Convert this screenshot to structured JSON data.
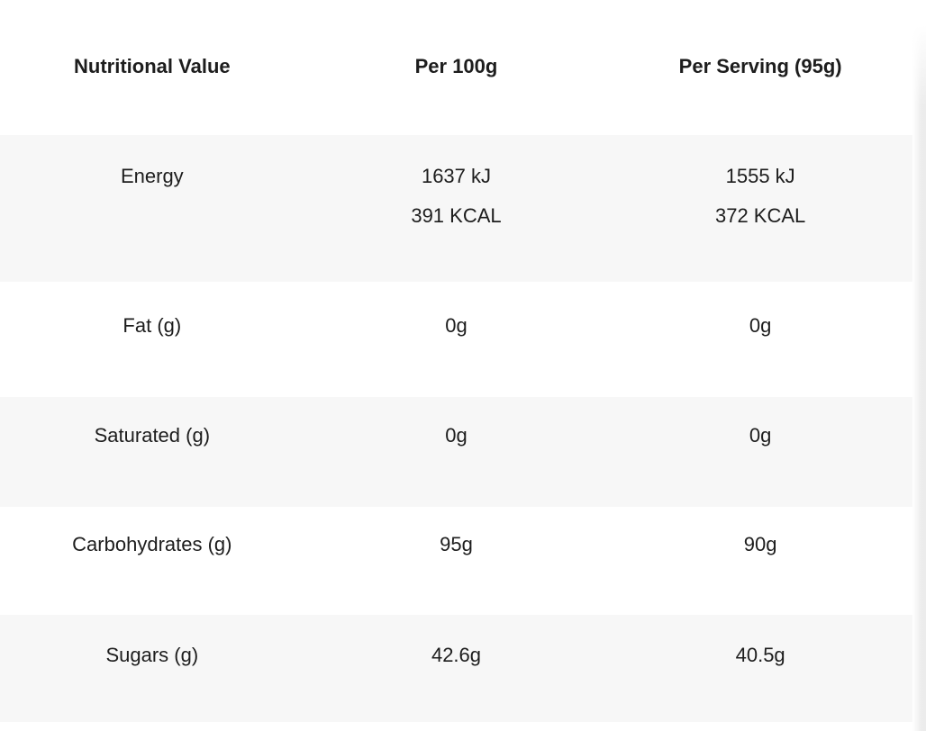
{
  "colors": {
    "background": "#ffffff",
    "row_alt_background": "#f7f7f7",
    "text": "#1d1d1d",
    "top_divider": "#f2f2f2",
    "right_edge_shade": "#ededed"
  },
  "table": {
    "headers": [
      "Nutritional Value",
      "Per 100g",
      "Per Serving (95g)"
    ],
    "rows": [
      {
        "label": "Energy",
        "per_100g_line1": "1637 kJ",
        "per_100g_line2": "391 KCAL",
        "per_serving_line1": "1555 kJ",
        "per_serving_line2": "372 KCAL"
      },
      {
        "label": "Fat (g)",
        "per_100g": "0g",
        "per_serving": "0g"
      },
      {
        "label": "Saturated (g)",
        "per_100g": "0g",
        "per_serving": "0g"
      },
      {
        "label": "Carbohydrates (g)",
        "per_100g": "95g",
        "per_serving": "90g"
      },
      {
        "label": "Sugars (g)",
        "per_100g": "42.6g",
        "per_serving": "40.5g"
      }
    ]
  },
  "chart_data": {
    "type": "table",
    "title": "Nutritional Value",
    "columns": [
      "Nutritional Value",
      "Per 100g",
      "Per Serving (95g)"
    ],
    "rows": [
      [
        "Energy",
        "1637 kJ / 391 KCAL",
        "1555 kJ / 372 KCAL"
      ],
      [
        "Fat (g)",
        "0g",
        "0g"
      ],
      [
        "Saturated (g)",
        "0g",
        "0g"
      ],
      [
        "Carbohydrates (g)",
        "95g",
        "90g"
      ],
      [
        "Sugars (g)",
        "42.6g",
        "40.5g"
      ]
    ],
    "layout_hints": {
      "zebra_striping": true,
      "striped_rows_background": "#f7f7f7",
      "header_bold": true,
      "cells_centered": true
    }
  }
}
